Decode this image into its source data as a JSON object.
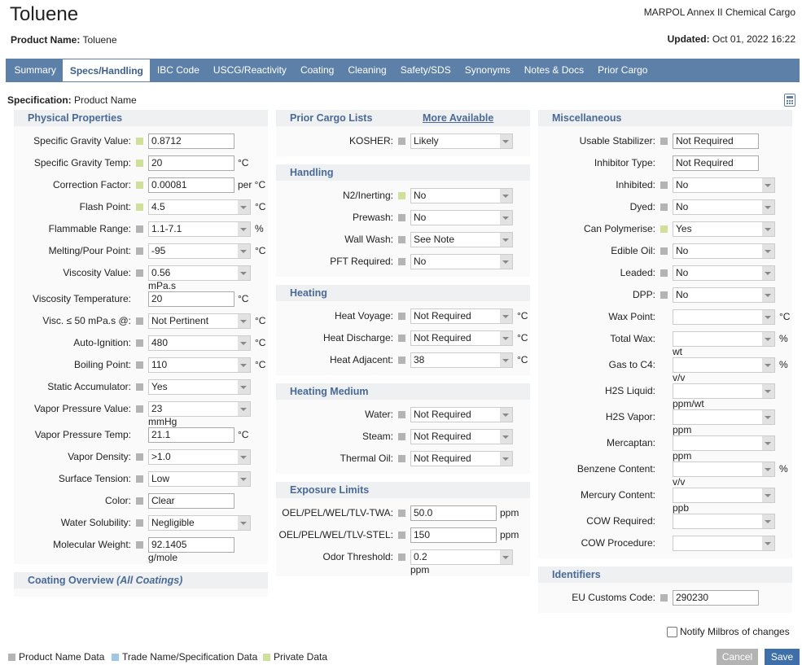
{
  "header": {
    "title": "Toluene",
    "category": "MARPOL Annex II Chemical Cargo",
    "product_name_label": "Product Name:",
    "product_name": "Toluene",
    "updated_label": "Updated:",
    "updated": "Oct 01, 2022 16:22"
  },
  "tabs": [
    {
      "label": "Summary"
    },
    {
      "label": "Specs/Handling",
      "active": true
    },
    {
      "label": "IBC Code"
    },
    {
      "label": "USCG/Reactivity"
    },
    {
      "label": "Coating"
    },
    {
      "label": "Cleaning"
    },
    {
      "label": "Safety/SDS"
    },
    {
      "label": "Synonyms"
    },
    {
      "label": "Notes & Docs"
    },
    {
      "label": "Prior Cargo"
    }
  ],
  "specification": {
    "label": "Specification:",
    "value": "Product Name"
  },
  "columns": [
    {
      "sections": [
        {
          "title": "Physical Properties",
          "fields": [
            {
              "label": "Specific Gravity Value:",
              "flag": "#cfe09a",
              "control": "input",
              "value": "0.8712"
            },
            {
              "label": "Specific Gravity Temp:",
              "flag": "#cfe09a",
              "control": "input",
              "value": "20",
              "unit": "°C"
            },
            {
              "label": "Correction Factor:",
              "flag": "#cfe09a",
              "control": "input",
              "value": "0.00081",
              "unit": "per °C"
            },
            {
              "label": "Flash Point:",
              "flag": "#cfe09a",
              "control": "select",
              "value": "4.5",
              "unit": "°C"
            },
            {
              "label": "Flammable Range:",
              "flag": "#b4b4b4",
              "control": "select",
              "value": "1.1-7.1",
              "unit": "%"
            },
            {
              "label": "Melting/Pour Point:",
              "flag": "#b4b4b4",
              "control": "select",
              "value": "-95",
              "unit": "°C"
            },
            {
              "label": "Viscosity Value:",
              "flag": "#b4b4b4",
              "control": "select",
              "value": "0.56",
              "unit_below": "mPa.s"
            },
            {
              "label": "Viscosity Temperature:",
              "control": "input",
              "value": "20",
              "unit": "°C"
            },
            {
              "label": "Visc. ≤ 50 mPa.s @:",
              "flag": "#b4b4b4",
              "control": "select",
              "value": "Not Pertinent",
              "unit": "°C"
            },
            {
              "label": "Auto-Ignition:",
              "flag": "#b4b4b4",
              "control": "select",
              "value": "480",
              "unit": "°C"
            },
            {
              "label": "Boiling Point:",
              "flag": "#b4b4b4",
              "control": "select",
              "value": "110",
              "unit": "°C"
            },
            {
              "label": "Static Accumulator:",
              "flag": "#b4b4b4",
              "control": "select",
              "value": "Yes"
            },
            {
              "label": "Vapor Pressure Value:",
              "flag": "#b4b4b4",
              "control": "select",
              "value": "23",
              "unit_below": "mmHg"
            },
            {
              "label": "Vapor Pressure Temp:",
              "control": "input",
              "value": "21.1",
              "unit": "°C"
            },
            {
              "label": "Vapor Density:",
              "flag": "#b4b4b4",
              "control": "select",
              "value": ">1.0"
            },
            {
              "label": "Surface Tension:",
              "flag": "#b4b4b4",
              "control": "select",
              "value": "Low"
            },
            {
              "label": "Color:",
              "flag": "#b4b4b4",
              "control": "input",
              "value": "Clear"
            },
            {
              "label": "Water Solubility:",
              "flag": "#b4b4b4",
              "control": "select",
              "value": "Negligible"
            },
            {
              "label": "Molecular Weight:",
              "flag": "#b4b4b4",
              "control": "input",
              "value": "92.1405",
              "unit_below": "g/mole"
            }
          ]
        },
        {
          "title": "Coating Overview",
          "title_note": "(All Coatings)",
          "fields": []
        }
      ]
    },
    {
      "sections": [
        {
          "title": "Prior Cargo Lists",
          "link": "More Available",
          "fields": [
            {
              "label": "KOSHER:",
              "flag": "#b4b4b4",
              "control": "select",
              "value": "Likely"
            }
          ]
        },
        {
          "title": "Handling",
          "fields": [
            {
              "label": "N2/Inerting:",
              "flag": "#cfe09a",
              "control": "select",
              "value": "No"
            },
            {
              "label": "Prewash:",
              "flag": "#b4b4b4",
              "control": "select",
              "value": "No"
            },
            {
              "label": "Wall Wash:",
              "flag": "#b4b4b4",
              "control": "select",
              "value": "See Note"
            },
            {
              "label": "PFT Required:",
              "flag": "#b4b4b4",
              "control": "select",
              "value": "No"
            }
          ]
        },
        {
          "title": "Heating",
          "fields": [
            {
              "label": "Heat Voyage:",
              "flag": "#b4b4b4",
              "control": "select",
              "value": "Not Required",
              "unit": "°C"
            },
            {
              "label": "Heat Discharge:",
              "flag": "#b4b4b4",
              "control": "select",
              "value": "Not Required",
              "unit": "°C"
            },
            {
              "label": "Heat Adjacent:",
              "flag": "#b4b4b4",
              "control": "select",
              "value": "38",
              "unit": "°C"
            }
          ]
        },
        {
          "title": "Heating Medium",
          "fields": [
            {
              "label": "Water:",
              "flag": "#b4b4b4",
              "control": "select",
              "value": "Not Required"
            },
            {
              "label": "Steam:",
              "flag": "#b4b4b4",
              "control": "select",
              "value": "Not Required"
            },
            {
              "label": "Thermal Oil:",
              "flag": "#b4b4b4",
              "control": "select",
              "value": "Not Required"
            }
          ]
        },
        {
          "title": "Exposure Limits",
          "fields": [
            {
              "label": "OEL/PEL/WEL/TLV-TWA:",
              "flag": "#b4b4b4",
              "control": "input",
              "value": "50.0",
              "unit": "ppm"
            },
            {
              "label": "OEL/PEL/WEL/TLV-STEL:",
              "flag": "#b4b4b4",
              "control": "input",
              "value": "150",
              "unit": "ppm"
            },
            {
              "label": "Odor Threshold:",
              "flag": "#b4b4b4",
              "control": "select",
              "value": "0.2",
              "unit_below": "ppm"
            }
          ]
        }
      ]
    },
    {
      "sections": [
        {
          "title": "Miscellaneous",
          "fields": [
            {
              "label": "Usable Stabilizer:",
              "flag": "#b4b4b4",
              "control": "input",
              "value": "Not Required"
            },
            {
              "label": "Inhibitor Type:",
              "control": "input",
              "value": "Not Required"
            },
            {
              "label": "Inhibited:",
              "flag": "#b4b4b4",
              "control": "select",
              "value": "No"
            },
            {
              "label": "Dyed:",
              "flag": "#b4b4b4",
              "control": "select",
              "value": "No"
            },
            {
              "label": "Can Polymerise:",
              "flag": "#cfe09a",
              "control": "select",
              "value": "Yes"
            },
            {
              "label": "Edible Oil:",
              "flag": "#b4b4b4",
              "control": "select",
              "value": "No"
            },
            {
              "label": "Leaded:",
              "flag": "#b4b4b4",
              "control": "select",
              "value": "No"
            },
            {
              "label": "DPP:",
              "flag": "#b4b4b4",
              "control": "select",
              "value": "No"
            },
            {
              "label": "Wax Point:",
              "control": "select",
              "unit": "°C"
            },
            {
              "label": "Total Wax:",
              "control": "select",
              "unit": "%",
              "unit_below": "wt"
            },
            {
              "label": "Gas to C4:",
              "control": "select",
              "unit": "%",
              "unit_below": "v/v"
            },
            {
              "label": "H2S Liquid:",
              "control": "select",
              "unit_below": "ppm/wt"
            },
            {
              "label": "H2S Vapor:",
              "control": "select",
              "unit_below": "ppm"
            },
            {
              "label": "Mercaptan:",
              "control": "select",
              "unit_below": "ppm"
            },
            {
              "label": "Benzene Content:",
              "control": "select",
              "unit": "%",
              "unit_below": "v/v"
            },
            {
              "label": "Mercury Content:",
              "control": "select",
              "unit_below": "ppb"
            },
            {
              "label": "COW Required:",
              "control": "select"
            },
            {
              "label": "COW Procedure:",
              "control": "select"
            }
          ]
        },
        {
          "title": "Identifiers",
          "fields": [
            {
              "label": "EU Customs Code:",
              "flag": "#b4b4b4",
              "control": "input",
              "value": "290230"
            }
          ]
        }
      ]
    }
  ],
  "notify": {
    "label": "Notify Milbros of changes"
  },
  "legend": [
    {
      "label": "Product Name Data",
      "color": "#b4b4b4"
    },
    {
      "label": "Trade Name/Specification Data",
      "color": "#9ec8e8"
    },
    {
      "label": "Private Data",
      "color": "#cfe09a"
    }
  ],
  "buttons": {
    "cancel": "Cancel",
    "save": "Save"
  }
}
